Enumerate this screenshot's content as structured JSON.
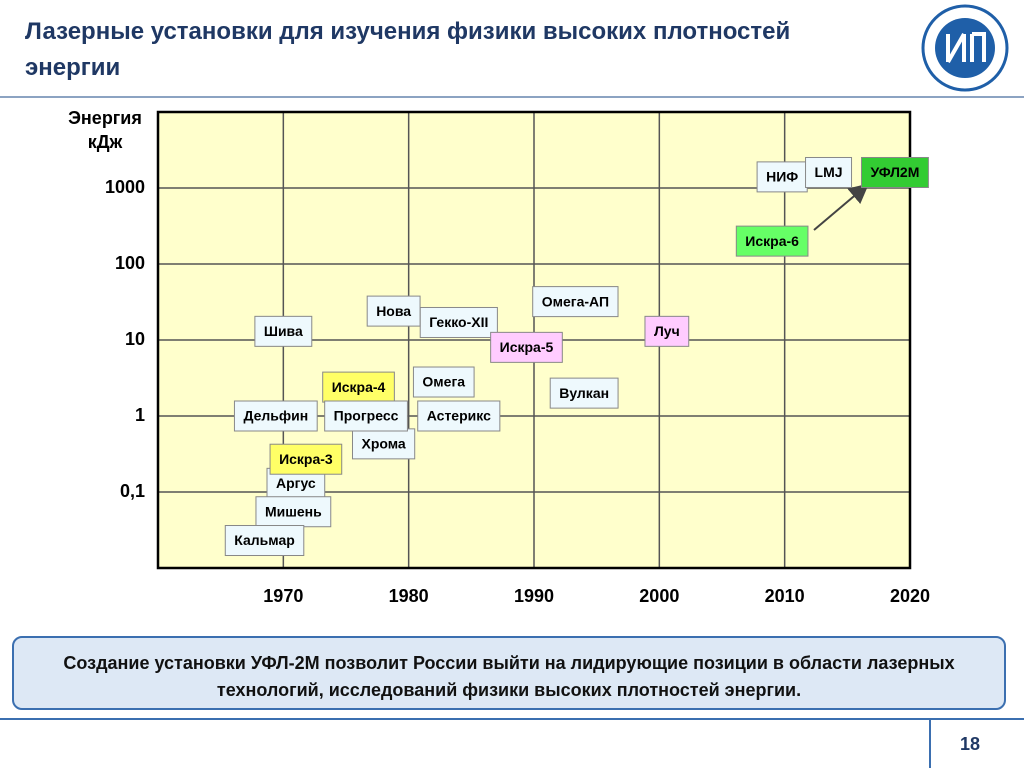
{
  "header": {
    "title": "Лазерные установки для изучения физики высоких плотностей энергии"
  },
  "chart_data": {
    "type": "scatter",
    "ylabel": "Энергия кДж",
    "log_y": true,
    "grid": true,
    "ylim": [
      0.01,
      10000
    ],
    "yticks": [
      {
        "value": 0.1,
        "label": "0,1"
      },
      1,
      10,
      100,
      1000
    ],
    "xlim": [
      1960,
      2020
    ],
    "xticks": [
      1970,
      1980,
      1990,
      2000,
      2010,
      2020
    ],
    "points": [
      {
        "name": "Шива",
        "x": 1970,
        "y": 13,
        "color": "#eef9fd"
      },
      {
        "name": "Гекко-XII",
        "x": 1984,
        "y": 17,
        "color": "#eef9fd"
      },
      {
        "name": "Нова",
        "x": 1978.8,
        "y": 24,
        "color": "#eef9fd"
      },
      {
        "name": "Омега-АП",
        "x": 1993.3,
        "y": 32,
        "color": "#eef9fd"
      },
      {
        "name": "Искра-5",
        "x": 1989.4,
        "y": 8,
        "color": "#ffccff"
      },
      {
        "name": "Луч",
        "x": 2000.6,
        "y": 13,
        "color": "#ffccff"
      },
      {
        "name": "Омега",
        "x": 1982.8,
        "y": 2.8,
        "color": "#eef9fd"
      },
      {
        "name": "Искра-4",
        "x": 1976,
        "y": 2.4,
        "color": "#ffff66"
      },
      {
        "name": "Вулкан",
        "x": 1994,
        "y": 2,
        "color": "#eef9fd"
      },
      {
        "name": "Хрома",
        "x": 1978,
        "y": 0.43,
        "color": "#eef9fd"
      },
      {
        "name": "Астерикс",
        "x": 1984,
        "y": 1,
        "color": "#eef9fd"
      },
      {
        "name": "Дельфин",
        "x": 1969.4,
        "y": 1,
        "color": "#eef9fd"
      },
      {
        "name": "Прогресс",
        "x": 1976.6,
        "y": 1,
        "color": "#eef9fd"
      },
      {
        "name": "Аргус",
        "x": 1971,
        "y": 0.13,
        "color": "#eef9fd"
      },
      {
        "name": "Искра-3",
        "x": 1971.8,
        "y": 0.27,
        "color": "#ffff66"
      },
      {
        "name": "Мишень",
        "x": 1970.8,
        "y": 0.055,
        "color": "#eef9fd"
      },
      {
        "name": "Кальмар",
        "x": 1968.5,
        "y": 0.023,
        "color": "#eef9fd"
      },
      {
        "name": "Искра-6",
        "x": 2009,
        "y": 200,
        "color": "#66ff66"
      },
      {
        "name": "НИФ",
        "x": 2009.8,
        "y": 1400,
        "color": "#eef9fd"
      },
      {
        "name": "LMJ",
        "x": 2013.5,
        "y": 1600,
        "color": "#eef9fd"
      },
      {
        "name": "УФЛ2М",
        "x": 2018.8,
        "y": 1600,
        "color": "#33cc33"
      }
    ]
  },
  "note": "Создание установки УФЛ-2М позволит России выйти на лидирующие позиции в области лазерных технологий, исследований физики высоких плотностей энергии.",
  "page_number": "18"
}
